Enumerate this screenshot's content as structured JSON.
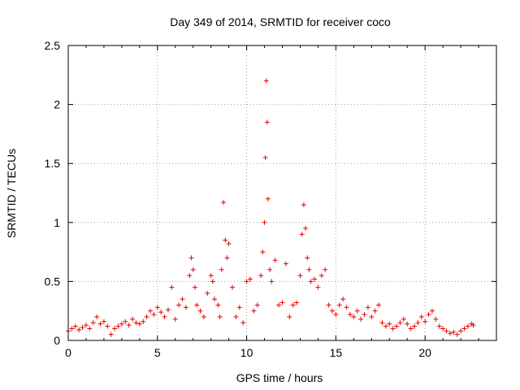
{
  "chart_data": {
    "type": "scatter",
    "title": "Day 349 of 2014, SRMTID for receiver coco",
    "xlabel": "GPS time / hours",
    "ylabel": "SRMTID / TECUs",
    "xlim": [
      0,
      24
    ],
    "ylim": [
      0,
      2.5
    ],
    "xticks": [
      0,
      5,
      10,
      15,
      20
    ],
    "xtick_labels": [
      "0",
      "5",
      "10",
      "15",
      "20"
    ],
    "yticks": [
      0,
      0.5,
      1,
      1.5,
      2,
      2.5
    ],
    "ytick_labels": [
      "0",
      "0.5",
      "1",
      "1.5",
      "2",
      "2.5"
    ],
    "grid": true,
    "marker": "+",
    "color": "#e60000",
    "series": [
      {
        "name": "SRMTID",
        "x": [
          0.0,
          0.2,
          0.4,
          0.6,
          0.8,
          1.0,
          1.2,
          1.4,
          1.6,
          1.8,
          2.0,
          2.2,
          2.4,
          2.6,
          2.8,
          3.0,
          3.2,
          3.4,
          3.6,
          3.8,
          4.0,
          4.2,
          4.4,
          4.6,
          4.8,
          5.0,
          5.2,
          5.4,
          5.6,
          5.8,
          6.0,
          6.2,
          6.4,
          6.6,
          6.8,
          6.9,
          7.0,
          7.1,
          7.2,
          7.4,
          7.6,
          7.8,
          8.0,
          8.1,
          8.2,
          8.4,
          8.5,
          8.6,
          8.7,
          8.8,
          8.9,
          9.0,
          9.2,
          9.4,
          9.6,
          9.8,
          10.0,
          10.2,
          10.4,
          10.6,
          10.8,
          10.9,
          11.0,
          11.05,
          11.1,
          11.15,
          11.2,
          11.3,
          11.4,
          11.6,
          11.8,
          12.0,
          12.2,
          12.4,
          12.6,
          12.8,
          13.0,
          13.1,
          13.2,
          13.3,
          13.4,
          13.5,
          13.6,
          13.8,
          14.0,
          14.2,
          14.4,
          14.6,
          14.8,
          15.0,
          15.2,
          15.4,
          15.6,
          15.8,
          16.0,
          16.2,
          16.4,
          16.6,
          16.8,
          17.0,
          17.2,
          17.4,
          17.6,
          17.8,
          18.0,
          18.2,
          18.4,
          18.6,
          18.8,
          19.0,
          19.2,
          19.4,
          19.6,
          19.8,
          20.0,
          20.2,
          20.4,
          20.6,
          20.8,
          21.0,
          21.2,
          21.4,
          21.6,
          21.8,
          22.0,
          22.2,
          22.4,
          22.6,
          22.7
        ],
        "y": [
          0.08,
          0.1,
          0.12,
          0.09,
          0.11,
          0.13,
          0.1,
          0.15,
          0.2,
          0.14,
          0.16,
          0.12,
          0.05,
          0.1,
          0.12,
          0.14,
          0.16,
          0.13,
          0.18,
          0.15,
          0.14,
          0.16,
          0.2,
          0.25,
          0.22,
          0.28,
          0.24,
          0.2,
          0.26,
          0.45,
          0.18,
          0.3,
          0.35,
          0.28,
          0.55,
          0.7,
          0.6,
          0.45,
          0.3,
          0.25,
          0.2,
          0.4,
          0.55,
          0.5,
          0.35,
          0.3,
          0.2,
          0.6,
          1.17,
          0.85,
          0.7,
          0.82,
          0.45,
          0.2,
          0.28,
          0.15,
          0.5,
          0.52,
          0.25,
          0.3,
          0.55,
          0.75,
          1.0,
          1.55,
          2.2,
          1.85,
          1.2,
          0.6,
          0.5,
          0.68,
          0.3,
          0.32,
          0.65,
          0.2,
          0.3,
          0.32,
          0.55,
          0.9,
          1.15,
          0.95,
          0.7,
          0.6,
          0.5,
          0.52,
          0.45,
          0.55,
          0.6,
          0.3,
          0.25,
          0.22,
          0.3,
          0.35,
          0.28,
          0.22,
          0.2,
          0.25,
          0.18,
          0.22,
          0.28,
          0.2,
          0.25,
          0.3,
          0.15,
          0.12,
          0.14,
          0.1,
          0.12,
          0.15,
          0.18,
          0.14,
          0.1,
          0.12,
          0.15,
          0.2,
          0.16,
          0.22,
          0.25,
          0.18,
          0.12,
          0.1,
          0.08,
          0.06,
          0.07,
          0.05,
          0.08,
          0.1,
          0.12,
          0.14,
          0.13
        ]
      }
    ]
  }
}
